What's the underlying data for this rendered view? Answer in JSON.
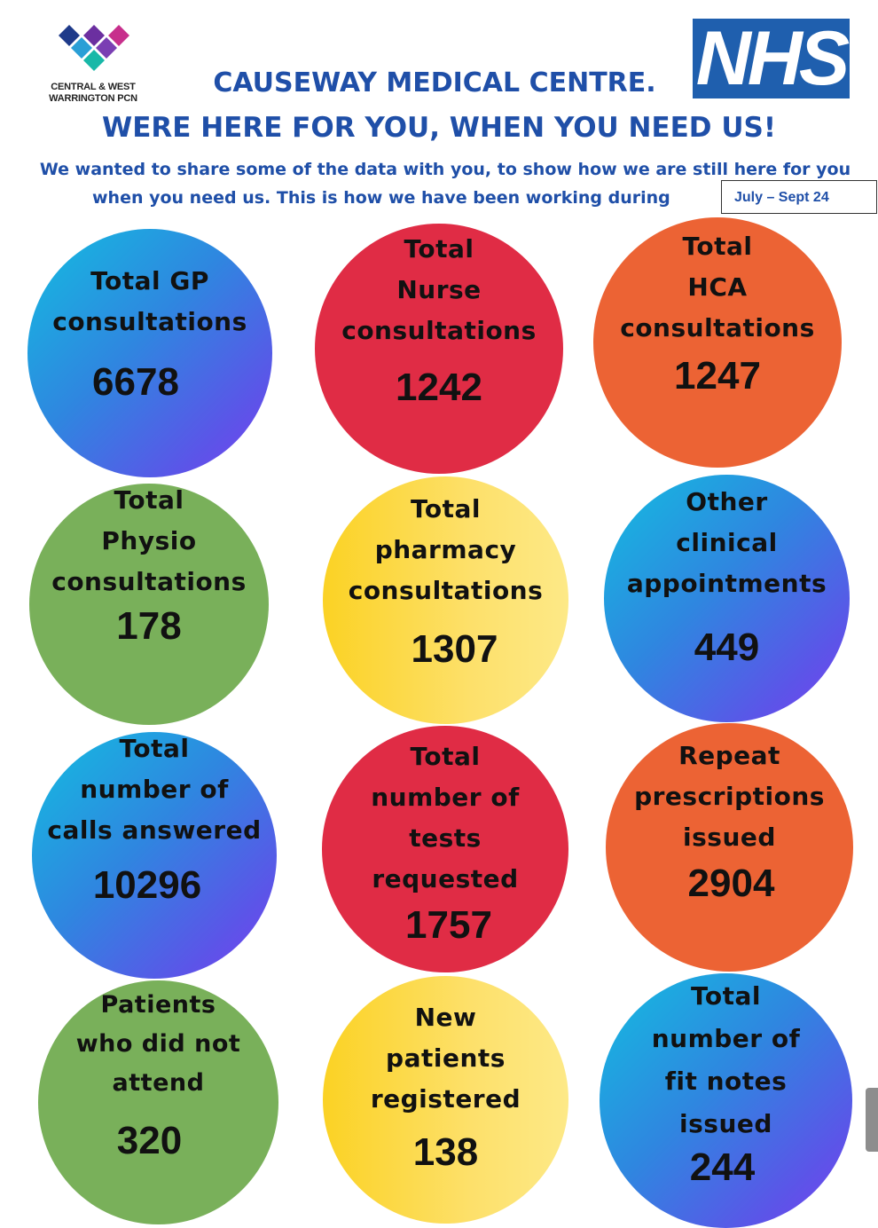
{
  "header": {
    "pcn_logo_text": "CENTRAL & WEST\nWARRINGTON PCN",
    "nhs_logo_text": "NHS",
    "title": "CAUSEWAY MEDICAL CENTRE.",
    "tagline": "WERE HERE FOR YOU, WHEN YOU NEED US!",
    "intro_line1": "We wanted to share some of the data with you, to show how we are still here for you",
    "intro_line2": "when you need us.  This is how we have been working during",
    "period": "July – Sept 24"
  },
  "colors": {
    "heading_blue": "#1f4fa8",
    "nhs_blue": "#1f5fae",
    "red": "#e02c45",
    "orange": "#ec6334",
    "green": "#79b05a",
    "yellow": "#fbd224"
  },
  "stats": [
    {
      "label": "Total GP\nconsultations",
      "value": "6678"
    },
    {
      "label": "Total\nNurse\nconsultations",
      "value": "1242"
    },
    {
      "label": "Total\nHCA\nconsultations",
      "value": "1247"
    },
    {
      "label": "Total\nPhysio\nconsultations",
      "value": "178"
    },
    {
      "label": "Total\npharmacy\nconsultations",
      "value": "1307"
    },
    {
      "label": "Other\nclinical\nappointments",
      "value": "449"
    },
    {
      "label": "Total\nnumber of\ncalls answered",
      "value": "10296"
    },
    {
      "label": "Total\nnumber of\ntests\nrequested",
      "value": "1757"
    },
    {
      "label": "Repeat\nprescriptions\nissued",
      "value": "2904"
    },
    {
      "label": "Patients\nwho did not\nattend",
      "value": "320"
    },
    {
      "label": "New\npatients\nregistered",
      "value": "138"
    },
    {
      "label": "Total\nnumber of\nfit notes\nissued",
      "value": "244"
    }
  ]
}
